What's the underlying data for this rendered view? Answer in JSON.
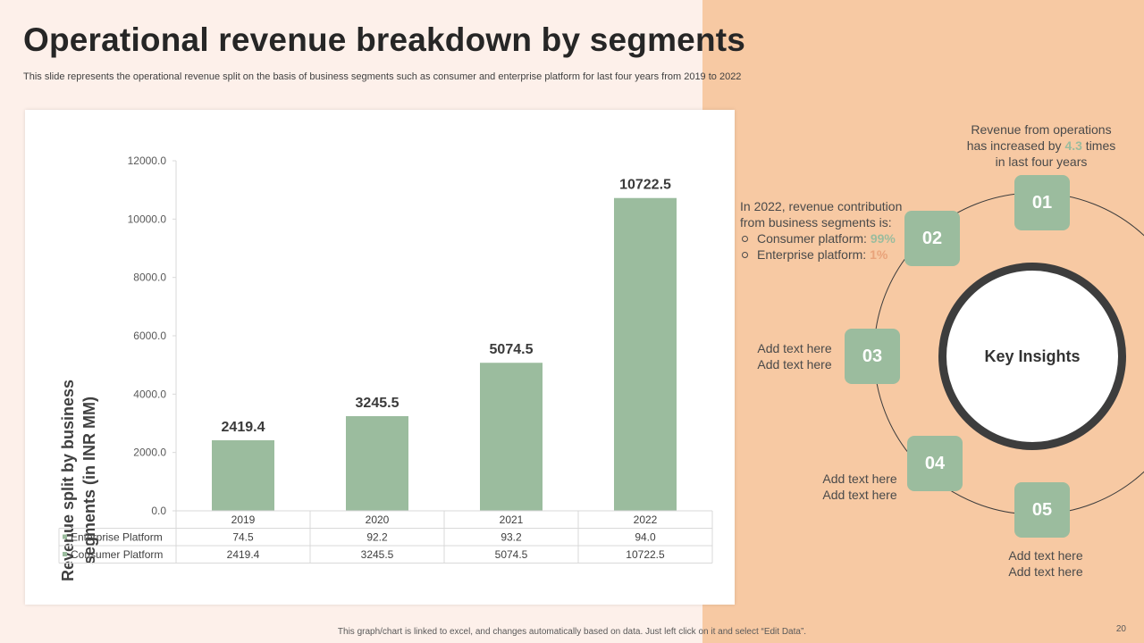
{
  "header": {
    "title": "Operational revenue breakdown by segments",
    "subtitle": "This slide represents the operational revenue split on the basis of business segments such as consumer and enterprise platform for last four years from 2019 to 2022"
  },
  "chart_data": {
    "type": "bar",
    "title": "",
    "ylabel_line1": "Revenue split by business",
    "ylabel_line2": "segments (in INR MM)",
    "ylim": [
      0,
      12000
    ],
    "yticks": [
      "0.0",
      "2000.0",
      "4000.0",
      "6000.0",
      "8000.0",
      "10000.0",
      "12000.0"
    ],
    "categories": [
      "2019",
      "2020",
      "2021",
      "2022"
    ],
    "plotted_series": "Consumer Platform",
    "data_labels": [
      "2419.4",
      "3245.5",
      "5074.5",
      "10722.5"
    ],
    "series": [
      {
        "name": "Enterprise Platform",
        "values": [
          74.5,
          92.2,
          93.2,
          94.0
        ],
        "labels": [
          "74.5",
          "92.2",
          "93.2",
          "94.0"
        ]
      },
      {
        "name": "Consumer Platform",
        "values": [
          2419.4,
          3245.5,
          5074.5,
          10722.5
        ],
        "labels": [
          "2419.4",
          "3245.5",
          "5074.5",
          "10722.5"
        ]
      }
    ]
  },
  "insights": {
    "center_label": "Key Insights",
    "badges": [
      "01",
      "02",
      "03",
      "04",
      "05"
    ],
    "note1": {
      "pre": "Revenue from operations",
      "mid_pre": "has increased by ",
      "value": "4.3",
      "mid_post": " times",
      "post": "in last four years"
    },
    "note2": {
      "line1": "In 2022, revenue contribution",
      "line2": "from business segments is:",
      "bullet1_label": "Consumer platform: ",
      "bullet1_value": "99%",
      "bullet2_label": "Enterprise platform: ",
      "bullet2_value": "1%"
    },
    "note3": [
      "Add text here",
      "Add text here"
    ],
    "note4": [
      "Add text here",
      "Add text here"
    ],
    "note5": [
      "Add text here",
      "Add text here"
    ]
  },
  "footer": {
    "note": "This graph/chart is linked to excel, and changes automatically based on data. Just left click on it and select “Edit Data”.",
    "page_number": "20"
  },
  "colors": {
    "bar": "#9bbc9e",
    "accent_peach": "#f7c9a3",
    "background": "#fdf0ea"
  }
}
